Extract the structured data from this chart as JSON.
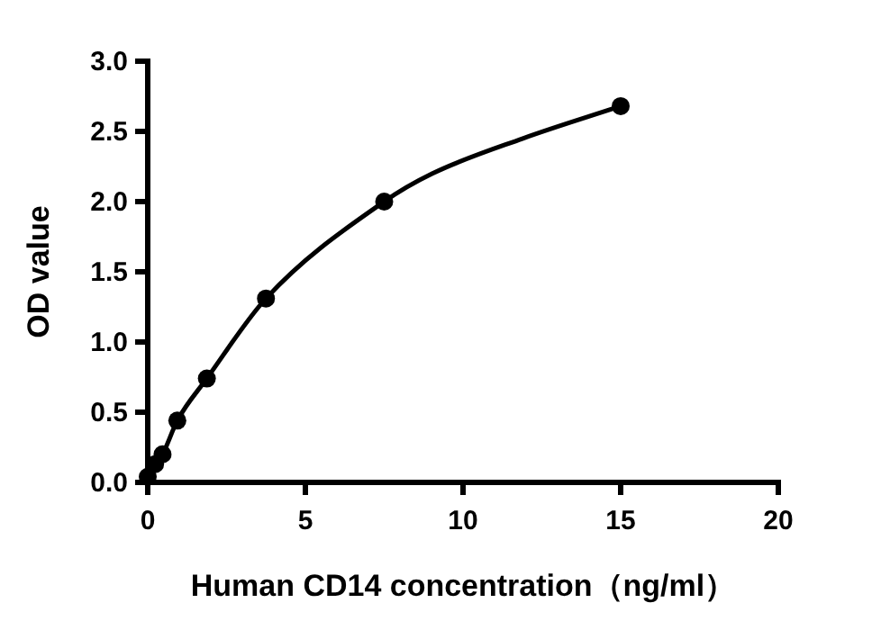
{
  "chart_data": {
    "type": "line",
    "xlabel": "Human CD14 concentration（ng/ml）",
    "ylabel": "OD value",
    "xlim": [
      0,
      20
    ],
    "xticks": [
      0,
      5,
      10,
      15,
      20
    ],
    "ylim": [
      0,
      3.0
    ],
    "yticks": [
      {
        "value": 0,
        "label": "0.0"
      },
      {
        "value": 0.5,
        "label": "0.5"
      },
      {
        "value": 1.0,
        "label": "1.0"
      },
      {
        "value": 1.5,
        "label": "1.5"
      },
      {
        "value": 2.0,
        "label": "2.0"
      },
      {
        "value": 2.5,
        "label": "2.5"
      },
      {
        "value": 3.0,
        "label": "3.0"
      }
    ],
    "series": [
      {
        "type": "scatter",
        "marker": "circle",
        "color": "#000000",
        "x": [
          0,
          0.234,
          0.469,
          0.938,
          1.875,
          3.75,
          7.5,
          15
        ],
        "values": [
          0.04,
          0.13,
          0.2,
          0.44,
          0.74,
          1.31,
          2.0,
          2.68
        ]
      },
      {
        "line_style": "solid",
        "color": "#000000",
        "x": [
          0,
          0.234,
          0.469,
          0.938,
          1.875,
          3.75,
          7.5,
          9.03,
          11.9,
          15
        ],
        "values": [
          0.04,
          0.13,
          0.2,
          0.44,
          0.74,
          1.31,
          2.0,
          2.2,
          2.45,
          2.68
        ]
      }
    ]
  }
}
